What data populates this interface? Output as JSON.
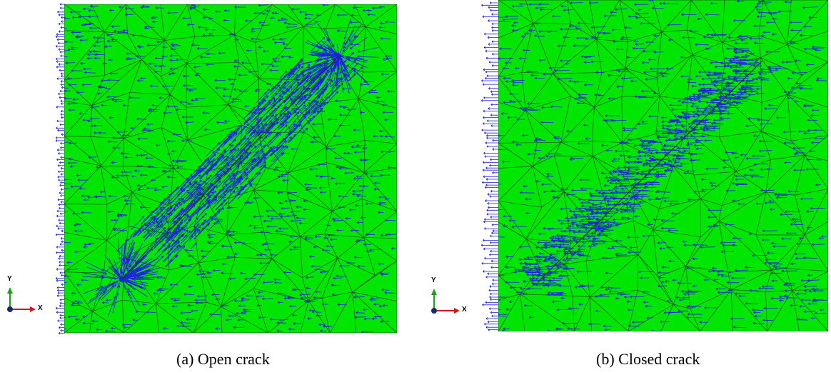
{
  "figure": {
    "panels": [
      {
        "id": "a",
        "caption": "(a) Open crack",
        "axis_triad": {
          "x_label": "X",
          "y_label": "Y"
        }
      },
      {
        "id": "b",
        "caption": "(b) Closed crack",
        "axis_triad": {
          "x_label": "X",
          "y_label": "Y"
        }
      }
    ],
    "colors": {
      "domain_fill": "#00e600",
      "mesh_edges": "#1a3a1a",
      "vectors": "#1e1ee6",
      "triad_x": "#cc1a1a",
      "triad_y": "#1aa01a",
      "triad_z_node": "#1a2a6a"
    }
  }
}
